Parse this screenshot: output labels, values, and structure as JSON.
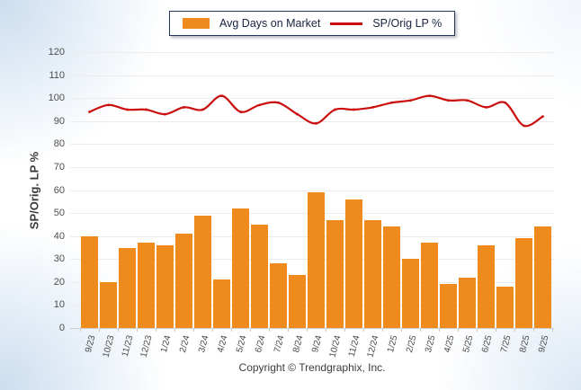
{
  "legend": {
    "bar_label": "Avg Days on Market",
    "line_label": "SP/Orig LP %"
  },
  "y_axis": {
    "title": "SP/Orig. LP %",
    "min": 0,
    "max": 120,
    "step": 10
  },
  "footer": {
    "copyright": "Copyright © Trendgraphix, Inc."
  },
  "colors": {
    "bar": "#ef8b1c",
    "line": "#cb0f0f",
    "grid": "#ececec"
  },
  "chart_data": {
    "type": "bar",
    "title": "",
    "xlabel": "",
    "ylabel": "SP/Orig. LP %",
    "ylim": [
      0,
      120
    ],
    "grid": true,
    "legend_position": "top",
    "categories": [
      "9/23",
      "10/23",
      "11/23",
      "12/23",
      "1/24",
      "2/24",
      "3/24",
      "4/24",
      "5/24",
      "6/24",
      "7/24",
      "8/24",
      "9/24",
      "10/24",
      "11/24",
      "12/24",
      "1/25",
      "2/25",
      "3/25",
      "4/25",
      "5/25",
      "6/25",
      "7/25",
      "8/25",
      "9/25"
    ],
    "series": [
      {
        "name": "Avg Days on Market",
        "type": "bar",
        "values": [
          40,
          20,
          35,
          37,
          36,
          41,
          49,
          21,
          52,
          45,
          28,
          23,
          59,
          47,
          56,
          47,
          44,
          30,
          37,
          19,
          22,
          36,
          18,
          39,
          44
        ]
      },
      {
        "name": "SP/Orig LP %",
        "type": "line",
        "values": [
          94,
          97,
          95,
          95,
          93,
          96,
          95,
          101,
          94,
          97,
          98,
          93,
          89,
          95,
          95,
          96,
          98,
          99,
          101,
          99,
          99,
          96,
          98,
          88,
          92
        ]
      }
    ]
  }
}
